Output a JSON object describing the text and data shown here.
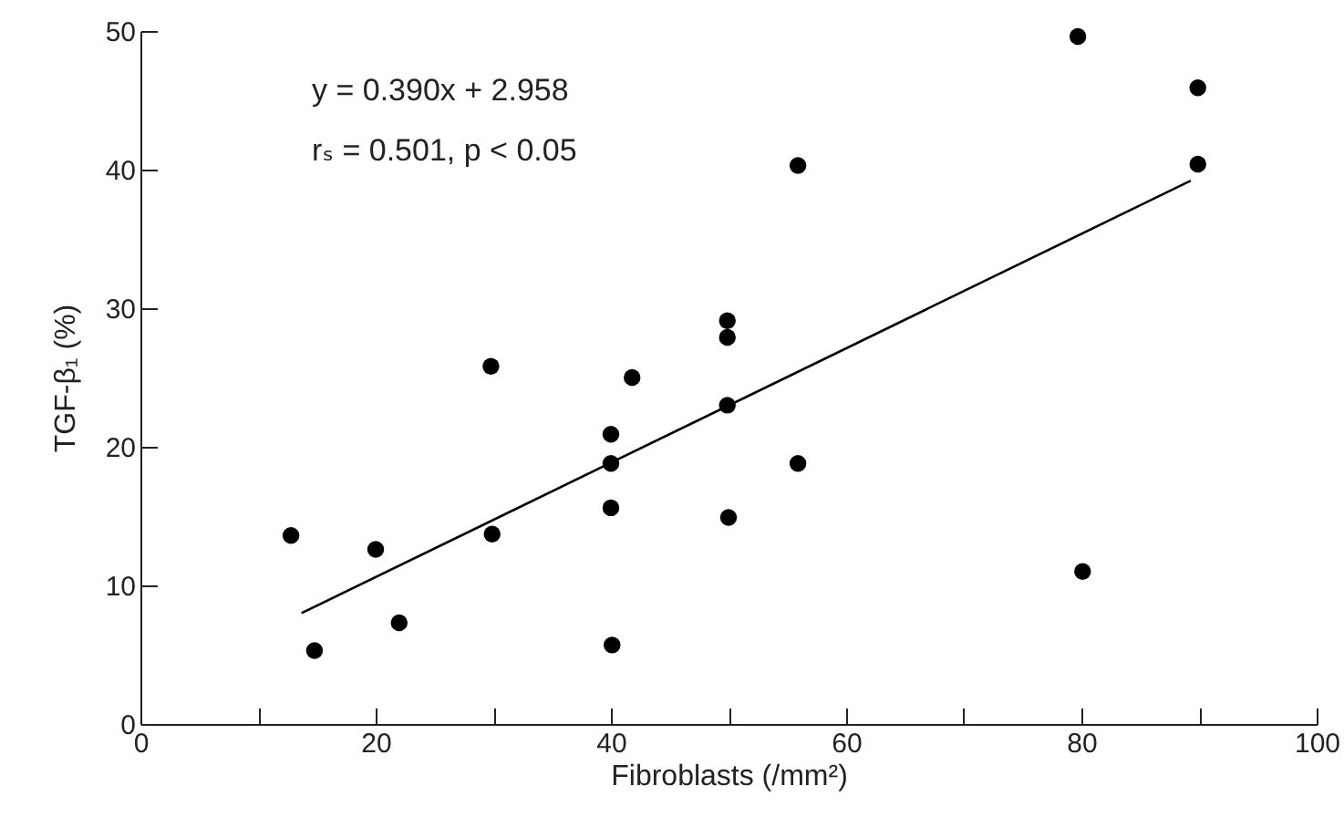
{
  "chart_data": {
    "type": "scatter",
    "xlabel": "Fibroblasts (/mm²)",
    "ylabel": "TGF-β₁ (%)",
    "annotations": [
      "y = 0.390x + 2.958",
      "rₛ = 0.501, p < 0.05"
    ],
    "xlim": [
      0,
      100
    ],
    "ylim": [
      0,
      50
    ],
    "xticks": [
      0,
      {
        "value": 10,
        "label": null
      },
      20,
      {
        "value": 30,
        "label": null
      },
      40,
      {
        "value": 50,
        "label": null
      },
      60,
      {
        "value": 70,
        "label": null
      },
      80,
      {
        "value": 90,
        "label": null
      },
      100
    ],
    "yticks": [
      0,
      10,
      20,
      30,
      40,
      50
    ],
    "grid": false,
    "marker": "circle",
    "series": [
      {
        "color": "#000000",
        "x": [
          12.8,
          14.8,
          20.0,
          22.0,
          29.8,
          29.9,
          40.0,
          40.0,
          40.0,
          40.1,
          41.8,
          49.9,
          49.9,
          49.9,
          50.0,
          55.9,
          55.9,
          79.7,
          80.1,
          89.9,
          89.9
        ],
        "values": [
          13.6,
          5.3,
          12.6,
          7.3,
          25.8,
          13.7,
          20.9,
          18.8,
          15.6,
          5.7,
          25.0,
          29.1,
          27.9,
          23.0,
          14.9,
          40.3,
          18.8,
          49.6,
          11.0,
          45.9,
          40.4
        ]
      },
      {
        "type": "line",
        "color": "#000000",
        "marker": "none",
        "x": [
          13.7,
          89.3
        ],
        "values": [
          8.0,
          39.2
        ]
      }
    ]
  }
}
